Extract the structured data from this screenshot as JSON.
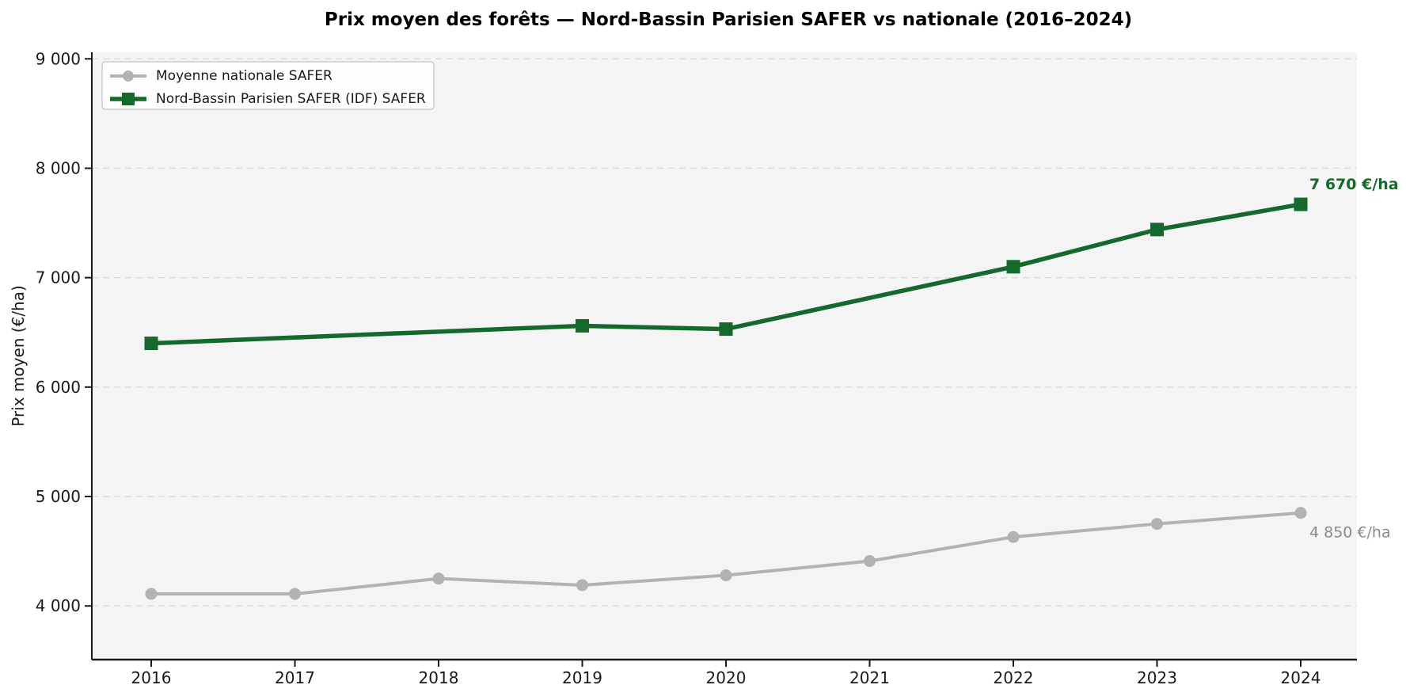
{
  "title": "Prix moyen des forêts — Nord-Bassin Parisien SAFER vs nationale (2016–2024)",
  "chart_data": {
    "type": "line",
    "title": "Prix moyen des forêts — Nord-Bassin Parisien SAFER vs nationale (2016–2024)",
    "xlabel": "",
    "ylabel": "Prix moyen (€/ha)",
    "ylim": [
      3500,
      9050
    ],
    "x_ticks": [
      2016,
      2017,
      2018,
      2019,
      2020,
      2021,
      2022,
      2023,
      2024
    ],
    "y_ticks": [
      4000,
      5000,
      6000,
      7000,
      8000,
      9000
    ],
    "y_tick_labels": [
      "4 000",
      "5 000",
      "6 000",
      "7 000",
      "8 000",
      "9 000"
    ],
    "grid": "horizontal-dashed",
    "legend_position": "upper-left",
    "plot_bg_color": "#f4f4f4",
    "grid_color": "#dadada",
    "axis_color": "#1a1a1a",
    "series": [
      {
        "name": "Moyenne nationale SAFER",
        "color": "#b2b2b2",
        "marker": "circle",
        "x": [
          2016,
          2017,
          2018,
          2019,
          2020,
          2021,
          2022,
          2023,
          2024
        ],
        "values": [
          4110,
          4110,
          4250,
          4190,
          4280,
          4410,
          4630,
          4750,
          4850
        ],
        "end_annotation": "4 850 €/ha",
        "annotation_color": "#8a8a8a",
        "annotation_bold": false
      },
      {
        "name": "Nord-Bassin Parisien SAFER (IDF) SAFER",
        "color": "#15692d",
        "marker": "square",
        "x": [
          2016,
          2019,
          2020,
          2022,
          2023,
          2024
        ],
        "values": [
          6400,
          6560,
          6530,
          7100,
          7440,
          7670
        ],
        "end_annotation": "7 670 €/ha",
        "annotation_color": "#15692d",
        "annotation_bold": true
      }
    ]
  }
}
